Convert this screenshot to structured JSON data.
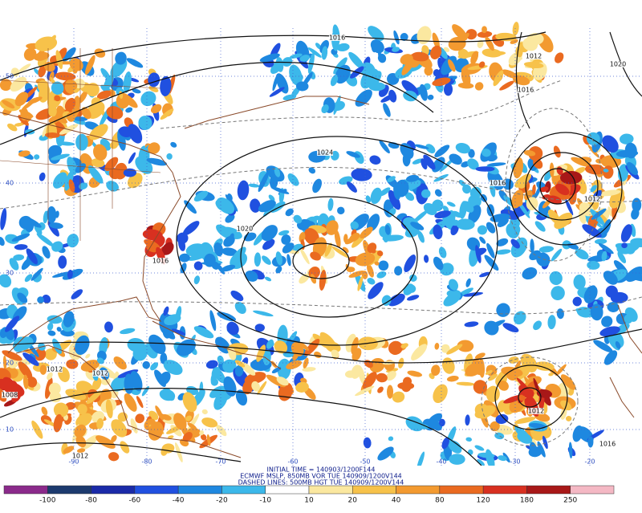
{
  "footer": {
    "lines": [
      "INITIAL TIME = 140903/1200F144",
      "ECMWF MSLP, 850MB VOR TUE 140909/1200V144",
      "DASHED LINES: 500MB HGT TUE 140909/1200V144"
    ]
  },
  "colorbar": {
    "ticks": [
      -100,
      -80,
      -60,
      -40,
      -20,
      -10,
      10,
      20,
      40,
      80,
      120,
      180,
      250
    ],
    "colors": [
      "#8b2a8b",
      "#1c3a6e",
      "#1a2aa8",
      "#2050e0",
      "#1e88e0",
      "#3cb8ea",
      "#ffffff",
      "#fbe8a0",
      "#f7c24a",
      "#f39a30",
      "#ea6a20",
      "#d83020",
      "#a81818",
      "#f4b8c4"
    ]
  },
  "longitude_labels": [
    "-90",
    "-80",
    "-70",
    "-60",
    "-50",
    "-40",
    "-30",
    "-20"
  ],
  "latitude_labels": [
    "50",
    "40",
    "30",
    "20",
    "10"
  ],
  "isobar_labels": [
    "1016",
    "1012",
    "1020",
    "1016",
    "1024",
    "1020",
    "1016",
    "1016",
    "1012",
    "1012",
    "1012",
    "1008",
    "1012",
    "1016",
    "1012"
  ]
}
